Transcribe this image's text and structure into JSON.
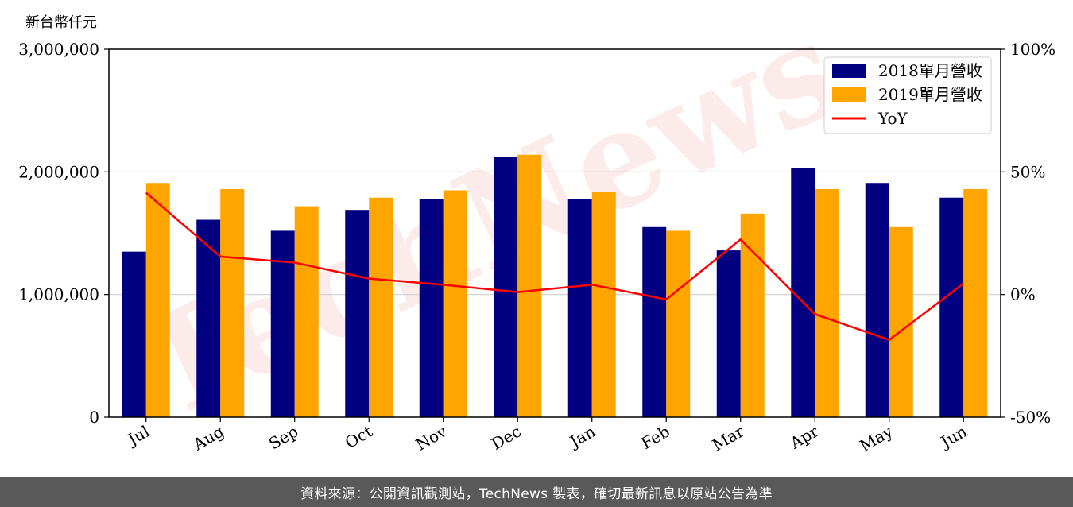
{
  "chart_data": {
    "type": "bar",
    "ylabel": "新台幣仟元",
    "categories": [
      "Jul",
      "Aug",
      "Sep",
      "Oct",
      "Nov",
      "Dec",
      "Jan",
      "Feb",
      "Mar",
      "Apr",
      "May",
      "Jun"
    ],
    "series": [
      {
        "name": "2018單月營收",
        "color": "#000080",
        "values": [
          1350000,
          1610000,
          1520000,
          1690000,
          1780000,
          2120000,
          1780000,
          1550000,
          1360000,
          2030000,
          1910000,
          1790000
        ]
      },
      {
        "name": "2019單月營收",
        "color": "#FFA500",
        "values": [
          1910000,
          1860000,
          1720000,
          1790000,
          1850000,
          2140000,
          1840000,
          1520000,
          1660000,
          1860000,
          1550000,
          1860000
        ]
      }
    ],
    "line_series": {
      "name": "YoY",
      "color": "#FF0000",
      "values": [
        41.5,
        15.5,
        13.0,
        6.5,
        4.0,
        1.0,
        4.0,
        -2.0,
        22.5,
        -8.0,
        -18.5,
        4.5
      ]
    },
    "ylim": [
      0,
      3000000
    ],
    "yticks": [
      "0",
      "1,000,000",
      "2,000,000",
      "3,000,000"
    ],
    "y2lim": [
      -50,
      100
    ],
    "y2ticks": [
      "-50%",
      "0%",
      "50%",
      "100%"
    ],
    "grid": "horizontal",
    "legend_position": "top-right",
    "watermark": "TechNews"
  },
  "footer": {
    "text": "資料來源：公開資訊觀測站，TechNews 製表，確切最新訊息以原站公告為準"
  }
}
